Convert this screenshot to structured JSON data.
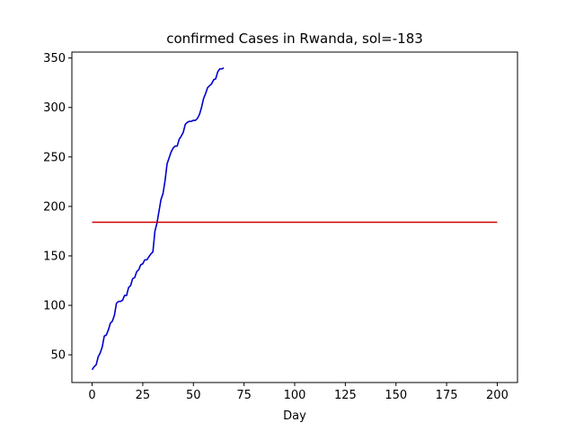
{
  "chart_data": {
    "type": "line",
    "title": "confirmed Cases in Rwanda, sol=-183",
    "xlabel": "Day",
    "ylabel": "",
    "xlim": [
      -10,
      210
    ],
    "ylim": [
      22,
      356
    ],
    "x_ticks": [
      0,
      25,
      50,
      75,
      100,
      125,
      150,
      175,
      200
    ],
    "y_ticks": [
      50,
      100,
      150,
      200,
      250,
      300,
      350
    ],
    "grid": false,
    "series": [
      {
        "color": "#0000cc",
        "x": [
          0,
          1,
          2,
          3,
          4,
          5,
          6,
          7,
          8,
          9,
          10,
          11,
          12,
          13,
          14,
          15,
          16,
          17,
          18,
          19,
          20,
          21,
          22,
          23,
          24,
          25,
          26,
          27,
          28,
          29,
          30,
          31,
          32,
          33,
          34,
          35,
          36,
          37,
          38,
          39,
          40,
          41,
          42,
          43,
          44,
          45,
          46,
          47,
          48,
          49,
          50,
          51,
          52,
          53,
          54,
          55,
          56,
          57,
          58,
          59,
          60,
          61,
          62,
          63,
          64,
          65
        ],
        "y": [
          35,
          38,
          40,
          48,
          52,
          58,
          69,
          70,
          75,
          82,
          84,
          90,
          102,
          104,
          104,
          105,
          110,
          110,
          118,
          120,
          127,
          128,
          134,
          136,
          141,
          142,
          146,
          146,
          149,
          152,
          154,
          175,
          183,
          195,
          207,
          213,
          226,
          243,
          249,
          255,
          259,
          261,
          261,
          268,
          271,
          275,
          283,
          285,
          286,
          286,
          287,
          287,
          289,
          293,
          300,
          309,
          314,
          320,
          322,
          324,
          328,
          329,
          336,
          339,
          339,
          340
        ]
      },
      {
        "color": "#cc0000",
        "x": [
          0,
          200
        ],
        "y": [
          184,
          184
        ]
      }
    ]
  }
}
